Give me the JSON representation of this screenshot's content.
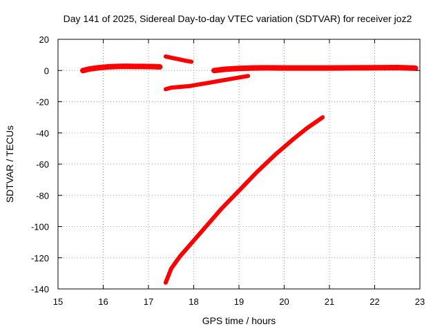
{
  "chart_data": {
    "type": "scatter",
    "title": "Day 141 of 2025, Sidereal Day-to-day VTEC variation (SDTVAR) for receiver joz2",
    "xlabel": "GPS time / hours",
    "ylabel": "SDTVAR / TECUs",
    "xlim": [
      15,
      23
    ],
    "ylim": [
      -140,
      20
    ],
    "xticks": [
      15,
      16,
      17,
      18,
      19,
      20,
      21,
      22,
      23
    ],
    "yticks": [
      20,
      0,
      -20,
      -40,
      -60,
      -80,
      -100,
      -120,
      -140
    ],
    "grid": true,
    "series_color": "#ff0000",
    "series": [
      {
        "x": [
          15.55,
          15.7,
          15.9,
          16.1,
          16.3,
          16.5,
          16.7,
          16.9,
          17.1,
          17.25
        ],
        "y": [
          0,
          1,
          1.8,
          2.3,
          2.6,
          2.7,
          2.6,
          2.6,
          2.5,
          2.3
        ]
      },
      {
        "x": [
          17.38,
          17.5,
          17.65,
          17.8,
          17.95
        ],
        "y": [
          9,
          8.2,
          7.3,
          6.4,
          5.6
        ]
      },
      {
        "x": [
          17.38,
          17.5,
          17.7,
          17.9,
          18.1,
          18.3,
          18.5,
          18.7,
          18.9,
          19.1,
          19.2
        ],
        "y": [
          -12,
          -11,
          -10.5,
          -10,
          -9,
          -8,
          -7,
          -6,
          -5,
          -4,
          -3.5
        ]
      },
      {
        "x": [
          18.45,
          18.7,
          19.0,
          19.3,
          19.6,
          20.0,
          20.5,
          21.0,
          21.5,
          22.0,
          22.5,
          22.9
        ],
        "y": [
          0,
          0.8,
          1.3,
          1.6,
          1.7,
          1.6,
          1.6,
          1.6,
          1.7,
          1.8,
          1.9,
          1.5
        ]
      },
      {
        "x": [
          17.38,
          17.5,
          17.7,
          18.0,
          18.3,
          18.6,
          19.0,
          19.4,
          19.8,
          20.2,
          20.5,
          20.85
        ],
        "y": [
          -136,
          -127,
          -119,
          -109,
          -99,
          -89,
          -77,
          -65,
          -54,
          -44,
          -37,
          -30
        ]
      }
    ]
  }
}
